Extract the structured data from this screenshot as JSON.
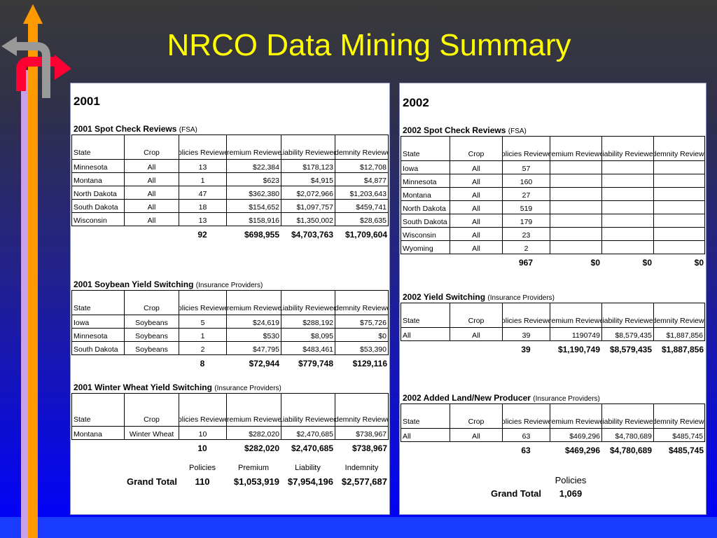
{
  "title": "NRCO Data Mining Summary",
  "colors": {
    "title": "#ffff00",
    "panel": "#ffffff",
    "arrow_up": "#ff9900",
    "arrow_right": "#ff0033",
    "arrow_left": "#999999"
  },
  "icons": [
    "arrow-up-icon",
    "arrow-left-icon",
    "arrow-right-icon"
  ],
  "headers": [
    "State",
    "Crop",
    "Policies Reviewed",
    "Premium Reviewed",
    "Liability Reviewed",
    "Indemnity Reviewed"
  ],
  "p2001": {
    "year": "2001",
    "tables": [
      {
        "title": "2001 Spot Check Reviews",
        "source": "(FSA)",
        "rows": [
          [
            "Minnesota",
            "All",
            "13",
            "$22,384",
            "$178,123",
            "$12,708"
          ],
          [
            "Montana",
            "All",
            "1",
            "$623",
            "$4,915",
            "$4,877"
          ],
          [
            "North Dakota",
            "All",
            "47",
            "$362,380",
            "$2,072,966",
            "$1,203,643"
          ],
          [
            "South Dakota",
            "All",
            "18",
            "$154,652",
            "$1,097,757",
            "$459,741"
          ],
          [
            "Wisconsin",
            "All",
            "13",
            "$158,916",
            "$1,350,002",
            "$28,635"
          ]
        ],
        "totals": [
          "92",
          "$698,955",
          "$4,703,763",
          "$1,709,604"
        ]
      },
      {
        "title": "2001 Soybean Yield Switching",
        "source": "(Insurance Providers)",
        "rows": [
          [
            "Iowa",
            "Soybeans",
            "5",
            "$24,619",
            "$288,192",
            "$75,726"
          ],
          [
            "Minnesota",
            "Soybeans",
            "1",
            "$530",
            "$8,095",
            "$0"
          ],
          [
            "South Dakota",
            "Soybeans",
            "2",
            "$47,795",
            "$483,461",
            "$53,390"
          ]
        ],
        "totals": [
          "8",
          "$72,944",
          "$779,748",
          "$129,116"
        ]
      },
      {
        "title": "2001 Winter Wheat Yield Switching",
        "source": "(Insurance Providers)",
        "rows": [
          [
            "Montana",
            "Winter Wheat",
            "10",
            "$282,020",
            "$2,470,685",
            "$738,967"
          ]
        ],
        "totals": [
          "10",
          "$282,020",
          "$2,470,685",
          "$738,967"
        ]
      }
    ],
    "grand": {
      "label": "Grand Total",
      "headers": [
        "Policies",
        "Premium",
        "Liability",
        "Indemnity"
      ],
      "values": [
        "110",
        "$1,053,919",
        "$7,954,196",
        "$2,577,687"
      ]
    }
  },
  "p2002": {
    "year": "2002",
    "tables": [
      {
        "title": "2002 Spot Check Reviews",
        "source": "(FSA)",
        "rows": [
          [
            "Iowa",
            "All",
            "57",
            "",
            "",
            ""
          ],
          [
            "Minnesota",
            "All",
            "160",
            "",
            "",
            ""
          ],
          [
            "Montana",
            "All",
            "27",
            "",
            "",
            ""
          ],
          [
            "North Dakota",
            "All",
            "519",
            "",
            "",
            ""
          ],
          [
            "South Dakota",
            "All",
            "179",
            "",
            "",
            ""
          ],
          [
            "Wisconsin",
            "All",
            "23",
            "",
            "",
            ""
          ],
          [
            "Wyoming",
            "All",
            "2",
            "",
            "",
            ""
          ]
        ],
        "totals": [
          "967",
          "$0",
          "$0",
          "$0"
        ]
      },
      {
        "title": "2002 Yield Switching",
        "source": "(Insurance Providers)",
        "rows": [
          [
            "All",
            "All",
            "39",
            "1190749",
            "$8,579,435",
            "$1,887,856"
          ]
        ],
        "totals": [
          "39",
          "$1,190,749",
          "$8,579,435",
          "$1,887,856"
        ]
      },
      {
        "title": "2002 Added Land/New Producer",
        "source": "(Insurance Providers)",
        "rows": [
          [
            "All",
            "All",
            "63",
            "$469,296",
            "$4,780,689",
            "$485,745"
          ]
        ],
        "totals": [
          "63",
          "$469,296",
          "$4,780,689",
          "$485,745"
        ]
      }
    ],
    "grand": {
      "label": "Grand Total",
      "headers": [
        "Policies"
      ],
      "values": [
        "1,069"
      ]
    }
  }
}
